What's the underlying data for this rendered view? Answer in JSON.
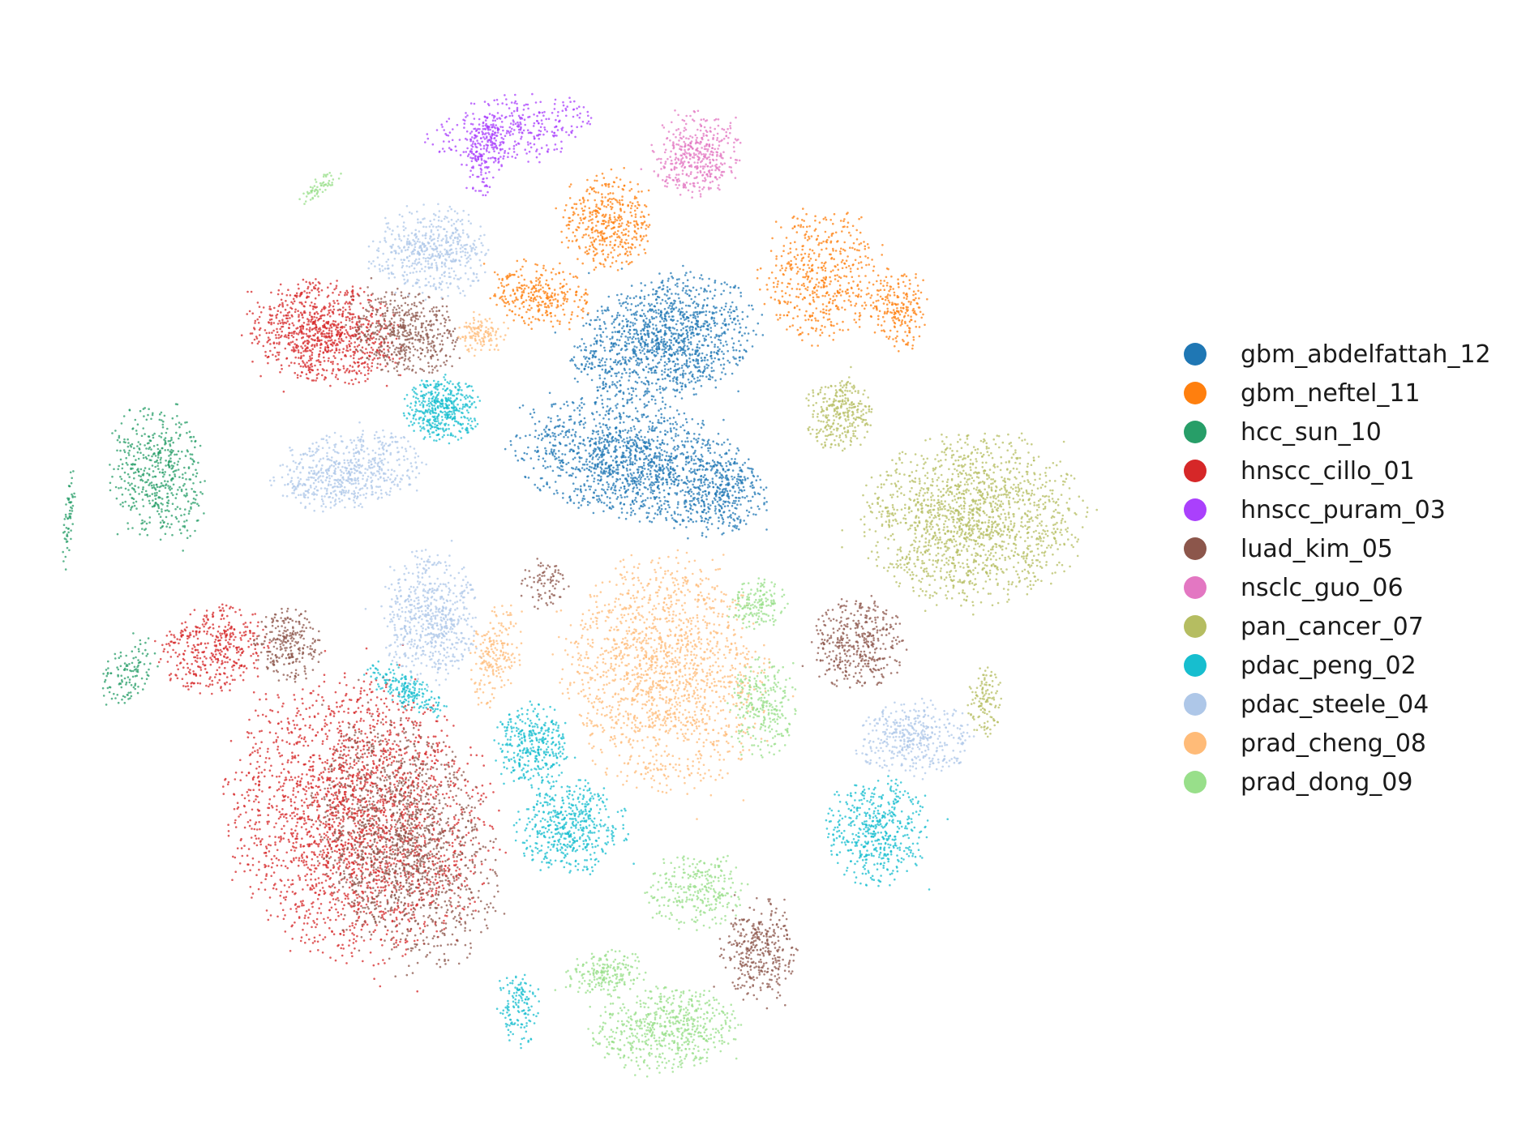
{
  "chart_data": {
    "type": "scatter",
    "title": "",
    "xlabel": "",
    "ylabel": "",
    "grid": false,
    "axes_visible": false,
    "legend_position": "right",
    "series": [
      {
        "name": "gbm_abdelfattah_12",
        "color": "#1f77b4"
      },
      {
        "name": "gbm_neftel_11",
        "color": "#ff7f0e"
      },
      {
        "name": "hcc_sun_10",
        "color": "#279e68"
      },
      {
        "name": "hnscc_cillo_01",
        "color": "#d62728"
      },
      {
        "name": "hnscc_puram_03",
        "color": "#aa40fc"
      },
      {
        "name": "luad_kim_05",
        "color": "#8c564b"
      },
      {
        "name": "nsclc_guo_06",
        "color": "#e377c2"
      },
      {
        "name": "pan_cancer_07",
        "color": "#b5bd61"
      },
      {
        "name": "pdac_peng_02",
        "color": "#17becf"
      },
      {
        "name": "pdac_steele_04",
        "color": "#aec7e8"
      },
      {
        "name": "prad_cheng_08",
        "color": "#ffbb78"
      },
      {
        "name": "prad_dong_09",
        "color": "#98df8a"
      }
    ]
  }
}
